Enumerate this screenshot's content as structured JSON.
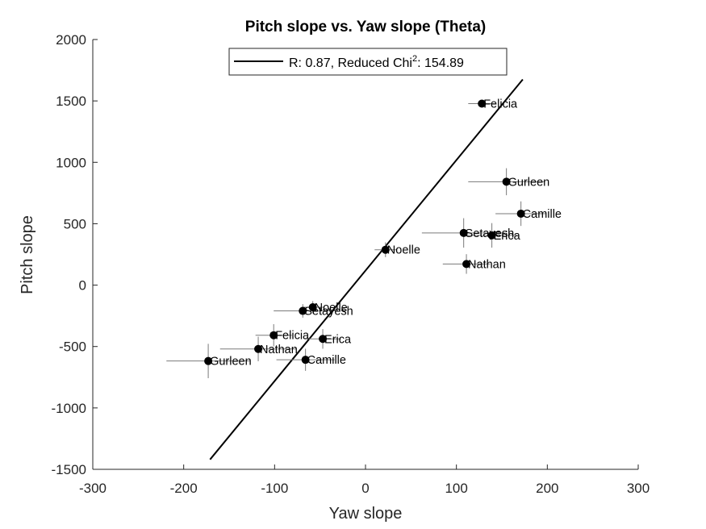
{
  "chart_data": {
    "type": "scatter",
    "title": "Pitch slope vs. Yaw slope (Theta)",
    "xlabel": "Yaw slope",
    "ylabel": "Pitch slope",
    "xlim": [
      -300,
      300
    ],
    "ylim": [
      -1500,
      2000
    ],
    "xticks": [
      -300,
      -200,
      -100,
      0,
      100,
      200,
      300
    ],
    "yticks": [
      -1500,
      -1000,
      -500,
      0,
      500,
      1000,
      1500,
      2000
    ],
    "grid": false,
    "legend": {
      "placement": "top-center",
      "prefix": "R: 0.87, Reduced Chi",
      "superscript": "2",
      "suffix": ": 154.89"
    },
    "fit_line": {
      "x": [
        -171,
        173
      ],
      "y": [
        -1420,
        1675
      ]
    },
    "points": [
      {
        "label": "Felicia",
        "x": 128,
        "y": 1478,
        "xerr": 15,
        "yerr": 25
      },
      {
        "label": "Gurleen",
        "x": 155,
        "y": 842,
        "xerr": 42,
        "yerr": 110
      },
      {
        "label": "Camille",
        "x": 171,
        "y": 582,
        "xerr": 28,
        "yerr": 100
      },
      {
        "label": "Setayesh",
        "x": 108,
        "y": 425,
        "xerr": 46,
        "yerr": 120
      },
      {
        "label": "Erica",
        "x": 139,
        "y": 405,
        "xerr": 28,
        "yerr": 100
      },
      {
        "label": "Nathan",
        "x": 111,
        "y": 172,
        "xerr": 26,
        "yerr": 80
      },
      {
        "label": "Noelle",
        "x": 22,
        "y": 288,
        "xerr": 12,
        "yerr": 60
      },
      {
        "label": "Noelle",
        "x": -58,
        "y": -180,
        "xerr": 12,
        "yerr": 50
      },
      {
        "label": "Setayesh",
        "x": -69,
        "y": -210,
        "xerr": 32,
        "yerr": 55
      },
      {
        "label": "Felicia",
        "x": -101,
        "y": -408,
        "xerr": 20,
        "yerr": 90
      },
      {
        "label": "Erica",
        "x": -47,
        "y": -438,
        "xerr": 20,
        "yerr": 80
      },
      {
        "label": "Nathan",
        "x": -118,
        "y": -520,
        "xerr": 42,
        "yerr": 100
      },
      {
        "label": "Camille",
        "x": -66,
        "y": -608,
        "xerr": 32,
        "yerr": 90
      },
      {
        "label": "Gurleen",
        "x": -173,
        "y": -618,
        "xerr": 46,
        "yerr": 140
      }
    ]
  }
}
